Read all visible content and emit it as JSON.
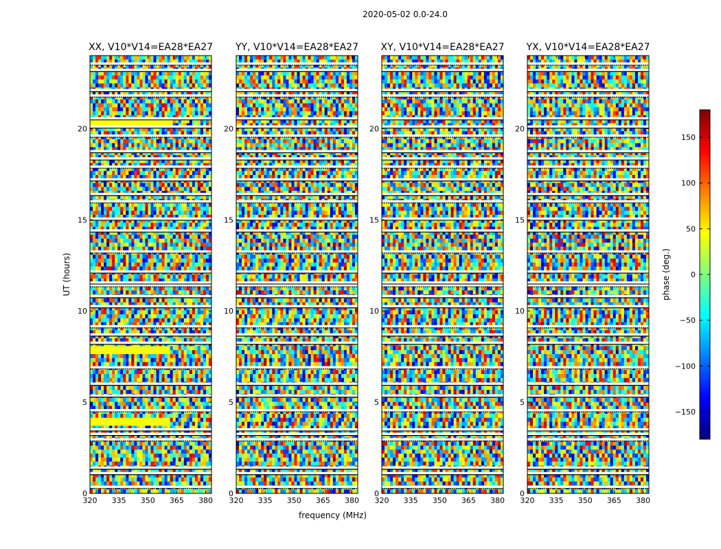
{
  "figure": {
    "suptitle": "2020-05-02 0.0-24.0"
  },
  "chart_data": [
    {
      "type": "heatmap",
      "title": "XX, V10*V14=EA28*EA27",
      "xlabel": "",
      "ylabel": "UT (hours)",
      "xlim": [
        320,
        383
      ],
      "ylim": [
        0,
        24
      ],
      "xticks": [
        "320",
        "335",
        "350",
        "365",
        "380"
      ],
      "yticks": [
        "0",
        "5",
        "10",
        "15",
        "20"
      ],
      "grid": false
    },
    {
      "type": "heatmap",
      "title": "YY, V10*V14=EA28*EA27",
      "xlabel": "frequency (MHz)",
      "ylabel": "",
      "xlim": [
        320,
        383
      ],
      "ylim": [
        0,
        24
      ],
      "xticks": [
        "320",
        "335",
        "350",
        "365",
        "380"
      ],
      "yticks": [
        "0",
        "5",
        "10",
        "15",
        "20"
      ],
      "grid": false
    },
    {
      "type": "heatmap",
      "title": "XY, V10*V14=EA28*EA27",
      "xlabel": "",
      "ylabel": "",
      "xlim": [
        320,
        383
      ],
      "ylim": [
        0,
        24
      ],
      "xticks": [
        "320",
        "335",
        "350",
        "365",
        "380"
      ],
      "yticks": [
        "0",
        "5",
        "10",
        "15",
        "20"
      ],
      "grid": false
    },
    {
      "type": "heatmap",
      "title": "YX, V10*V14=EA28*EA27",
      "xlabel": "",
      "ylabel": "",
      "xlim": [
        320,
        383
      ],
      "ylim": [
        0,
        24
      ],
      "xticks": [
        "320",
        "335",
        "350",
        "365",
        "380"
      ],
      "yticks": [
        "0",
        "5",
        "10",
        "15",
        "20"
      ],
      "grid": false
    }
  ],
  "colorbar": {
    "label": "phase (deg.)",
    "range": [
      -180,
      180
    ],
    "ticks": [
      "150",
      "100",
      "50",
      "0",
      "−50",
      "−100",
      "−150"
    ],
    "tick_values": [
      150,
      100,
      50,
      0,
      -50,
      -100,
      -150
    ],
    "colormap": "jet",
    "colors": [
      "#00007f",
      "#0000ff",
      "#007fff",
      "#00ffff",
      "#7fff7f",
      "#ffff00",
      "#ff7f00",
      "#ff0000",
      "#7f0000"
    ]
  },
  "flagged_ut_hours": [
    0.35,
    1.1,
    1.4,
    2.95,
    3.25,
    3.5,
    4.55,
    5.35,
    6.0,
    6.9,
    8.25,
    8.7,
    9.15,
    10.25,
    10.8,
    11.4,
    11.55,
    12.15,
    13.25,
    14.4,
    15.05,
    16.0,
    16.4,
    17.2,
    17.9,
    18.35,
    18.75,
    19.6,
    20.1,
    20.55,
    21.8,
    22.1,
    23.2,
    23.55
  ]
}
